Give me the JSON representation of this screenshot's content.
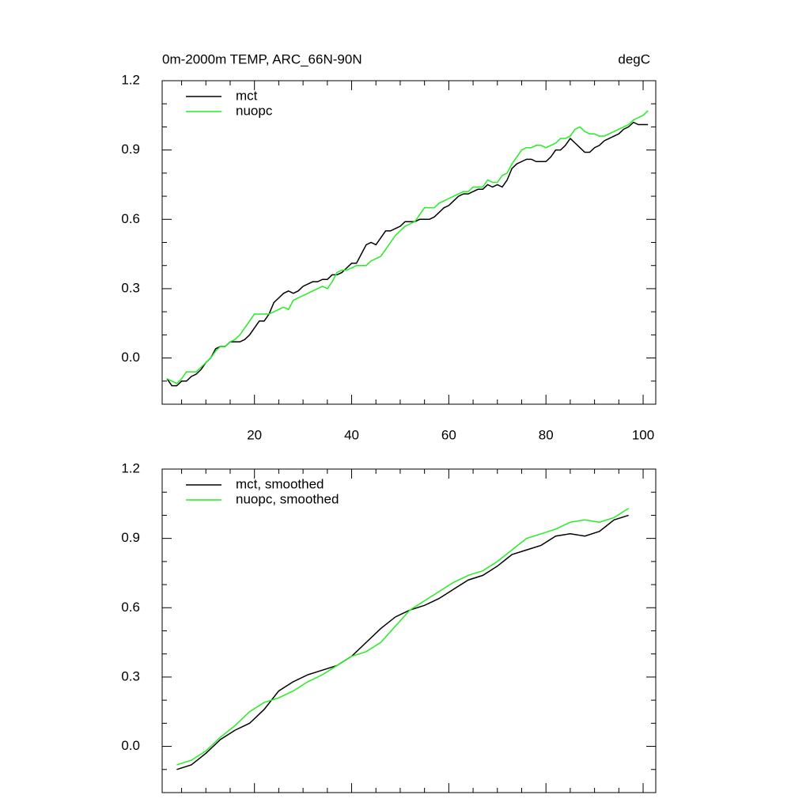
{
  "chart_data": [
    {
      "type": "line",
      "title": "0m-2000m TEMP, ARC_66N-90N",
      "title_right": "degC",
      "x": [
        2,
        3,
        4,
        5,
        6,
        7,
        8,
        9,
        10,
        11,
        12,
        13,
        14,
        15,
        16,
        17,
        18,
        19,
        20,
        21,
        22,
        23,
        24,
        25,
        26,
        27,
        28,
        29,
        30,
        31,
        32,
        33,
        34,
        35,
        36,
        37,
        38,
        39,
        40,
        41,
        42,
        43,
        44,
        45,
        46,
        47,
        48,
        49,
        50,
        51,
        52,
        53,
        54,
        55,
        56,
        57,
        58,
        59,
        60,
        61,
        62,
        63,
        64,
        65,
        66,
        67,
        68,
        69,
        70,
        71,
        72,
        73,
        74,
        75,
        76,
        77,
        78,
        79,
        80,
        81,
        82,
        83,
        84,
        85,
        86,
        87,
        88,
        89,
        90,
        91,
        92,
        93,
        94,
        95,
        96,
        97,
        98,
        99,
        100,
        101
      ],
      "series": [
        {
          "name": "mct",
          "color": "#000000",
          "values": [
            -0.09,
            -0.12,
            -0.12,
            -0.1,
            -0.1,
            -0.08,
            -0.07,
            -0.05,
            -0.02,
            0.0,
            0.04,
            0.05,
            0.05,
            0.07,
            0.07,
            0.07,
            0.08,
            0.1,
            0.13,
            0.16,
            0.16,
            0.19,
            0.24,
            0.26,
            0.28,
            0.29,
            0.28,
            0.29,
            0.31,
            0.32,
            0.33,
            0.33,
            0.34,
            0.34,
            0.36,
            0.36,
            0.37,
            0.39,
            0.41,
            0.41,
            0.45,
            0.49,
            0.5,
            0.49,
            0.52,
            0.55,
            0.55,
            0.56,
            0.57,
            0.59,
            0.59,
            0.59,
            0.6,
            0.6,
            0.6,
            0.61,
            0.63,
            0.65,
            0.66,
            0.68,
            0.7,
            0.71,
            0.71,
            0.72,
            0.73,
            0.73,
            0.75,
            0.74,
            0.75,
            0.74,
            0.77,
            0.82,
            0.84,
            0.85,
            0.86,
            0.86,
            0.85,
            0.85,
            0.85,
            0.87,
            0.9,
            0.9,
            0.92,
            0.95,
            0.93,
            0.91,
            0.89,
            0.89,
            0.91,
            0.92,
            0.94,
            0.95,
            0.96,
            0.97,
            0.99,
            1.0,
            1.02,
            1.01,
            1.01,
            1.01
          ]
        },
        {
          "name": "nuopc",
          "color": "#22ee22",
          "values": [
            -0.09,
            -0.1,
            -0.11,
            -0.09,
            -0.06,
            -0.06,
            -0.06,
            -0.04,
            -0.02,
            0.0,
            0.03,
            0.05,
            0.05,
            0.07,
            0.08,
            0.1,
            0.13,
            0.16,
            0.19,
            0.19,
            0.19,
            0.19,
            0.2,
            0.21,
            0.22,
            0.21,
            0.25,
            0.26,
            0.27,
            0.28,
            0.29,
            0.3,
            0.31,
            0.3,
            0.33,
            0.37,
            0.38,
            0.38,
            0.39,
            0.4,
            0.4,
            0.4,
            0.42,
            0.43,
            0.44,
            0.47,
            0.5,
            0.53,
            0.55,
            0.57,
            0.58,
            0.59,
            0.62,
            0.65,
            0.65,
            0.65,
            0.67,
            0.68,
            0.69,
            0.7,
            0.71,
            0.72,
            0.72,
            0.74,
            0.74,
            0.74,
            0.77,
            0.76,
            0.76,
            0.79,
            0.8,
            0.84,
            0.87,
            0.9,
            0.91,
            0.91,
            0.92,
            0.92,
            0.91,
            0.92,
            0.93,
            0.95,
            0.95,
            0.96,
            0.99,
            1.0,
            0.98,
            0.97,
            0.97,
            0.96,
            0.96,
            0.97,
            0.98,
            0.99,
            1.0,
            1.01,
            1.03,
            1.04,
            1.05,
            1.07
          ]
        }
      ],
      "xlim": [
        1,
        102.6
      ],
      "xticks": [
        20,
        40,
        60,
        80,
        100
      ],
      "xtick_labels": true,
      "ylim": [
        -0.2,
        1.2
      ],
      "yticks": [
        {
          "value": 0,
          "label": "0.0"
        },
        0.3,
        0.6,
        0.9,
        1.2
      ],
      "legend": "upper left"
    },
    {
      "type": "line",
      "x": [
        4,
        7,
        10,
        13,
        16,
        19,
        22,
        25,
        28,
        31,
        34,
        37,
        40,
        43,
        46,
        49,
        52,
        55,
        58,
        61,
        64,
        67,
        70,
        73,
        76,
        79,
        82,
        85,
        88,
        91,
        94,
        97
      ],
      "series": [
        {
          "name": "mct, smoothed",
          "color": "#000000",
          "values": [
            -0.1,
            -0.08,
            -0.03,
            0.03,
            0.07,
            0.1,
            0.16,
            0.24,
            0.28,
            0.31,
            0.33,
            0.35,
            0.39,
            0.45,
            0.51,
            0.56,
            0.59,
            0.61,
            0.64,
            0.68,
            0.72,
            0.74,
            0.78,
            0.83,
            0.85,
            0.87,
            0.91,
            0.92,
            0.91,
            0.93,
            0.98,
            1.0
          ]
        },
        {
          "name": "nuopc, smoothed",
          "color": "#22ee22",
          "values": [
            -0.08,
            -0.06,
            -0.02,
            0.04,
            0.09,
            0.15,
            0.19,
            0.21,
            0.24,
            0.28,
            0.31,
            0.35,
            0.39,
            0.41,
            0.45,
            0.52,
            0.59,
            0.63,
            0.67,
            0.71,
            0.74,
            0.76,
            0.8,
            0.85,
            0.9,
            0.92,
            0.94,
            0.97,
            0.98,
            0.97,
            0.99,
            1.03
          ]
        }
      ],
      "xlim": [
        1,
        102.6
      ],
      "xticks": [
        20,
        40,
        60,
        80,
        100
      ],
      "xtick_labels": false,
      "ylim": [
        -0.2,
        1.2
      ],
      "yticks": [
        {
          "value": 0,
          "label": "0.0"
        },
        0.3,
        0.6,
        0.9,
        1.2
      ],
      "legend": "upper left"
    }
  ]
}
